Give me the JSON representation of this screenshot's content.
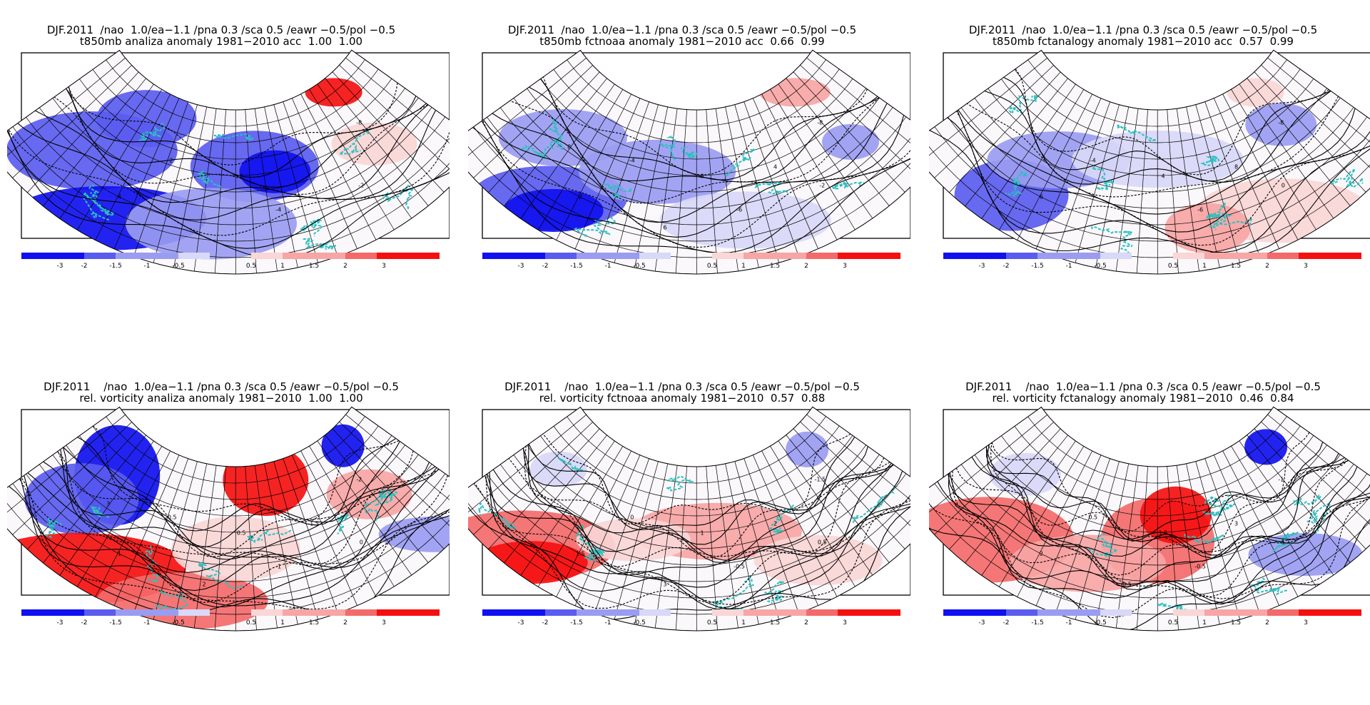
{
  "colors": {
    "blue_strong": "#1010f0",
    "blue_mid": "#5a5cf0",
    "blue_light": "#9a9cf2",
    "blue_pale": "#d8d8f8",
    "red_pale": "#fad6d6",
    "red_light": "#f7a5a5",
    "red_mid": "#f46a6a",
    "red_strong": "#f51010",
    "coast": "#2cc0c0",
    "contour": "#000000"
  },
  "colorbar": {
    "blue_labels": [
      "-3",
      "-2",
      "-1.5",
      "-1",
      "-0.5"
    ],
    "red_labels": [
      "0.5",
      "1",
      "1.5",
      "2",
      "3"
    ]
  },
  "panels": [
    {
      "title1": "DJF.2011  /nao  1.0/ea−1.1 /pna 0.3 /sca 0.5 /eawr −0.5/pol −0.5",
      "title2": "t850mb analiza anomaly 1981−2010 acc  1.00  1.00",
      "field": "t850",
      "contour_labels": [
        "-8",
        "-4",
        "2",
        "-2",
        "2",
        "4"
      ]
    },
    {
      "title1": "DJF.2011  /nao  1.0/ea−1.1 /pna 0.3 /sca 0.5 /eawr −0.5/pol −0.5",
      "title2": "t850mb fctnoaa anomaly 1981−2010 acc  0.66  0.99",
      "field": "t850",
      "contour_labels": [
        "-8",
        "-6",
        "-4",
        "-2",
        "0",
        "2",
        "4",
        "6",
        "8"
      ]
    },
    {
      "title1": "DJF.2011  /nao  1.0/ea−1.1 /pna 0.3 /sca 0.5 /eawr −0.5/pol −0.5",
      "title2": "t850mb fctanalogy anomaly 1981−2010 acc  0.57  0.99",
      "field": "t850",
      "contour_labels": [
        "-8",
        "-6",
        "-4",
        "0",
        "4",
        "6",
        "8"
      ]
    },
    {
      "title1": "DJF.2011    /nao  1.0/ea−1.1 /pna 0.3 /sca 0.5 /eawr −0.5/pol −0.5",
      "title2": "rel. vorticity analiza anomaly 1981−2010  1.00  1.00",
      "field": "vort",
      "contour_labels": [
        "-2",
        "-1",
        "-0.5",
        "0",
        "0.5",
        "1",
        "1.5",
        "2",
        "3"
      ]
    },
    {
      "title1": "DJF.2011    /nao  1.0/ea−1.1 /pna 0.3 /sca 0.5 /eawr −0.5/pol −0.5",
      "title2": "rel. vorticity fctnoaa anomaly 1981−2010  0.57  0.88",
      "field": "vort",
      "contour_labels": [
        "-1.5",
        "-0.5",
        "0",
        "0.5",
        "1",
        "1.5",
        "2",
        "3"
      ]
    },
    {
      "title1": "DJF.2011    /nao  1.0/ea−1.1 /pna 0.3 /sca 0.5 /eawr −0.5/pol −0.5",
      "title2": "rel. vorticity fctanalogy anomaly 1981−2010  0.46  0.84",
      "field": "vort",
      "contour_labels": [
        "-1",
        "-0.5",
        "0.5",
        "1",
        "1.5",
        "2",
        "3",
        "-0.5"
      ]
    }
  ]
}
